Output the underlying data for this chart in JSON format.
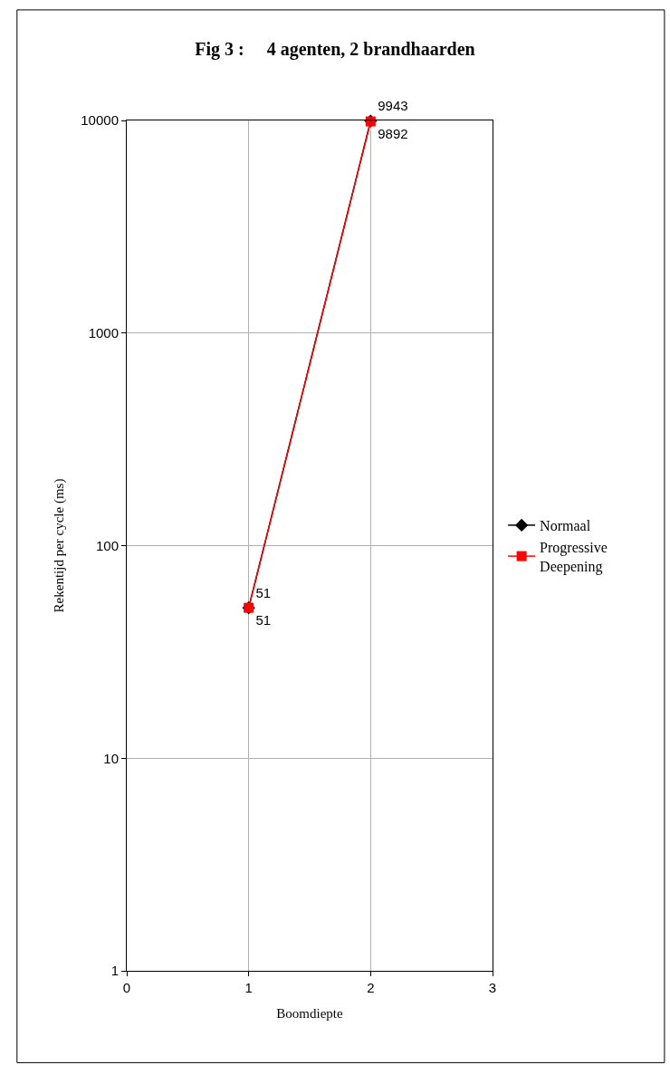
{
  "chart_data": {
    "type": "line",
    "title": "Fig 3 :     4 agenten, 2 brandhaarden",
    "xlabel": "Boomdiepte",
    "ylabel": "Rekentijd per cycle (ms)",
    "x": [
      1,
      2
    ],
    "series": [
      {
        "name": "Normaal",
        "color": "#000000",
        "marker": "diamond",
        "values": [
          51,
          9943
        ]
      },
      {
        "name": "Progressive Deepening",
        "color": "#ff0000",
        "marker": "square",
        "values": [
          51,
          9892
        ]
      }
    ],
    "xlim": [
      0,
      3
    ],
    "xticks": [
      0,
      1,
      2,
      3
    ],
    "ylim": [
      1,
      10000
    ],
    "yticks": [
      1,
      10,
      100,
      1000,
      10000
    ],
    "log": "y",
    "grid": true,
    "legend": "right",
    "data_labels": true,
    "line_style": "solid"
  }
}
